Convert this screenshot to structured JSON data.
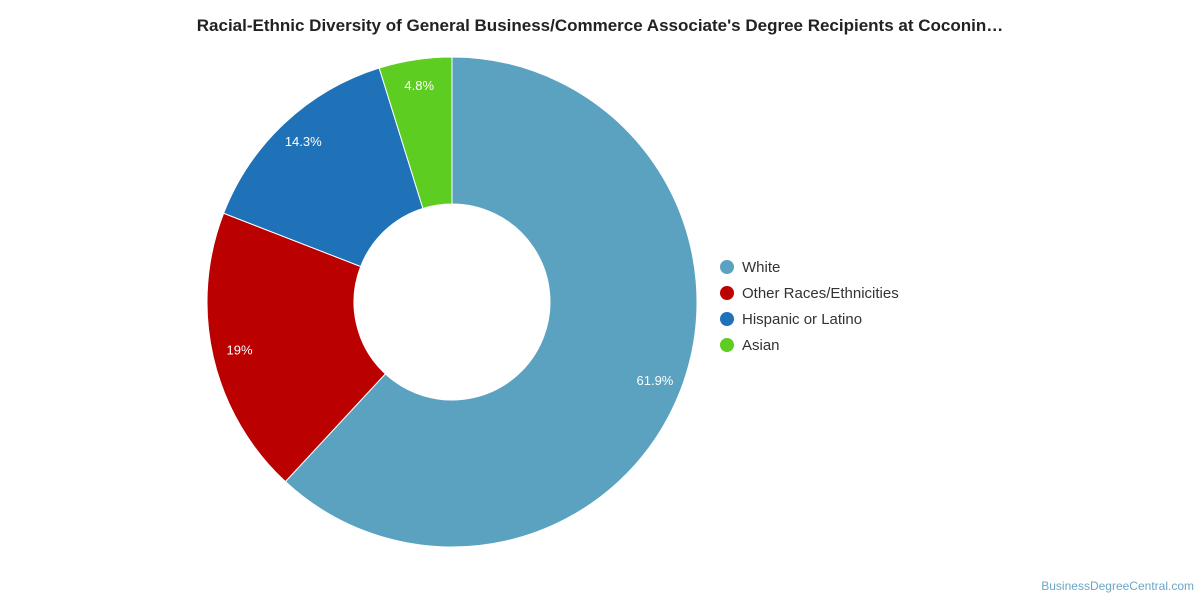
{
  "chart_data": {
    "type": "pie",
    "title": "Racial-Ethnic Diversity of General Business/Commerce Associate's Degree Recipients at Coconin…",
    "categories": [
      "White",
      "Other Races/Ethnicities",
      "Hispanic or Latino",
      "Asian"
    ],
    "values": [
      61.9,
      19.0,
      14.3,
      4.8
    ],
    "data_labels": [
      "61.9%",
      "19%",
      "14.3%",
      "4.8%"
    ],
    "colors": [
      "#5ba2c0",
      "#bb0000",
      "#1f72b8",
      "#5ecd22"
    ],
    "legend_position": "right",
    "donut": true
  },
  "watermark": "BusinessDegreeCentral.com"
}
